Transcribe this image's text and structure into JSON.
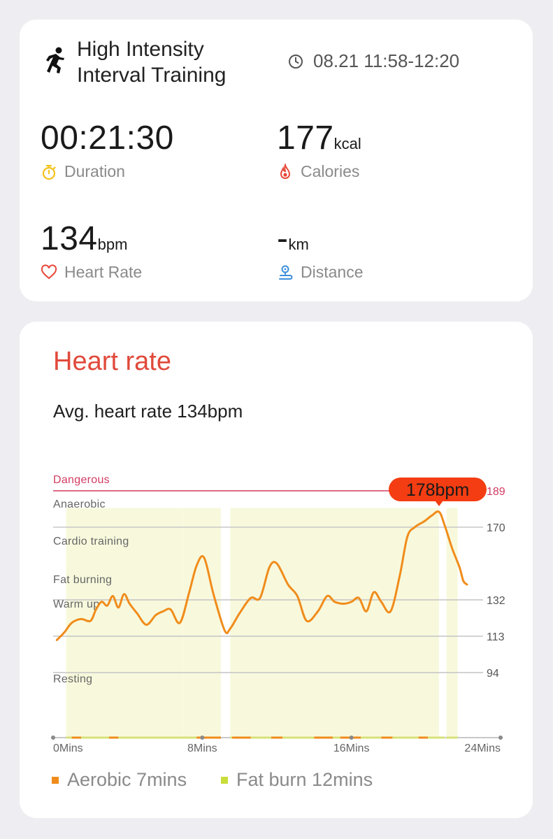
{
  "summary": {
    "workout_title_line1": "High Intensity",
    "workout_title_line2": "Interval Training",
    "workout_icon": "runner-icon",
    "time_range": "08.21 11:58-12:20",
    "duration": {
      "value": "00:21:30",
      "label": "Duration",
      "icon": "stopwatch-icon"
    },
    "calories": {
      "value": "177",
      "unit": "kcal",
      "label": "Calories",
      "icon": "flame-icon"
    },
    "heart_rate": {
      "value": "134",
      "unit": "bpm",
      "label": "Heart Rate",
      "icon": "heart-icon"
    },
    "distance": {
      "value": "-",
      "unit": "km",
      "label": "Distance",
      "icon": "route-pin-icon"
    }
  },
  "heart_rate_section": {
    "title": "Heart rate",
    "avg_text": "Avg. heart rate 134bpm",
    "max_tooltip": "178bpm"
  },
  "legend": [
    {
      "label": "Aerobic 7mins",
      "color": "#f08c1c"
    },
    {
      "label": "Fat burn 12mins",
      "color": "#c9dd3a"
    }
  ],
  "colors": {
    "accent_red": "#e04a3b",
    "line_orange": "#f08c1c",
    "tooltip_red": "#f43d12",
    "dangerous_line": "#d23c62",
    "fill_yellow": "#f8f9dc"
  },
  "chart_data": {
    "type": "line",
    "title": "",
    "xlabel": "",
    "ylabel": "",
    "x_ticks": [
      "0Mins",
      "8Mins",
      "16Mins",
      "24Mins"
    ],
    "xlim": [
      0,
      24
    ],
    "ylim": [
      60,
      189
    ],
    "zones": [
      {
        "name": "Dangerous",
        "threshold": 189
      },
      {
        "name": "Anaerobic",
        "threshold": 170
      },
      {
        "name": "Cardio training",
        "threshold": 132
      },
      {
        "name": "Fat burning",
        "threshold": 113
      },
      {
        "name": "Warm up",
        "threshold": 94
      },
      {
        "name": "Resting",
        "threshold": null
      }
    ],
    "y_tick_labels": [
      "189",
      "170",
      "132",
      "113",
      "94"
    ],
    "series": [
      {
        "x": [
          0.2,
          0.6,
          1.0,
          1.5,
          2.0,
          2.3,
          2.6,
          2.9,
          3.2,
          3.5,
          3.8,
          4.1,
          4.5,
          5.0,
          5.5,
          5.9,
          6.3,
          6.8,
          7.3,
          7.7,
          8.1,
          8.6,
          9.2,
          9.5,
          10.0,
          10.6,
          11.1,
          11.6,
          12.0,
          12.6,
          13.1,
          13.6,
          14.2,
          14.7,
          15.1,
          15.6,
          16.0,
          16.4,
          16.8,
          17.2,
          17.6,
          18.1,
          18.6,
          19.0,
          19.4,
          19.9,
          20.3,
          20.7,
          21.0,
          21.4,
          21.8,
          22.0,
          22.2
        ],
        "y": [
          111,
          115,
          120,
          122,
          121,
          127,
          131,
          129,
          134,
          128,
          135,
          130,
          125,
          119,
          124,
          126,
          127,
          120,
          136,
          150,
          154,
          135,
          116,
          117,
          125,
          133,
          133,
          149,
          151,
          140,
          134,
          121,
          126,
          134,
          131,
          130,
          131,
          133,
          126,
          136,
          131,
          126,
          145,
          165,
          170,
          173,
          176,
          178,
          171,
          159,
          149,
          142,
          140
        ]
      }
    ],
    "max_point": {
      "x": 20.7,
      "y": 178,
      "label": "178bpm"
    }
  }
}
